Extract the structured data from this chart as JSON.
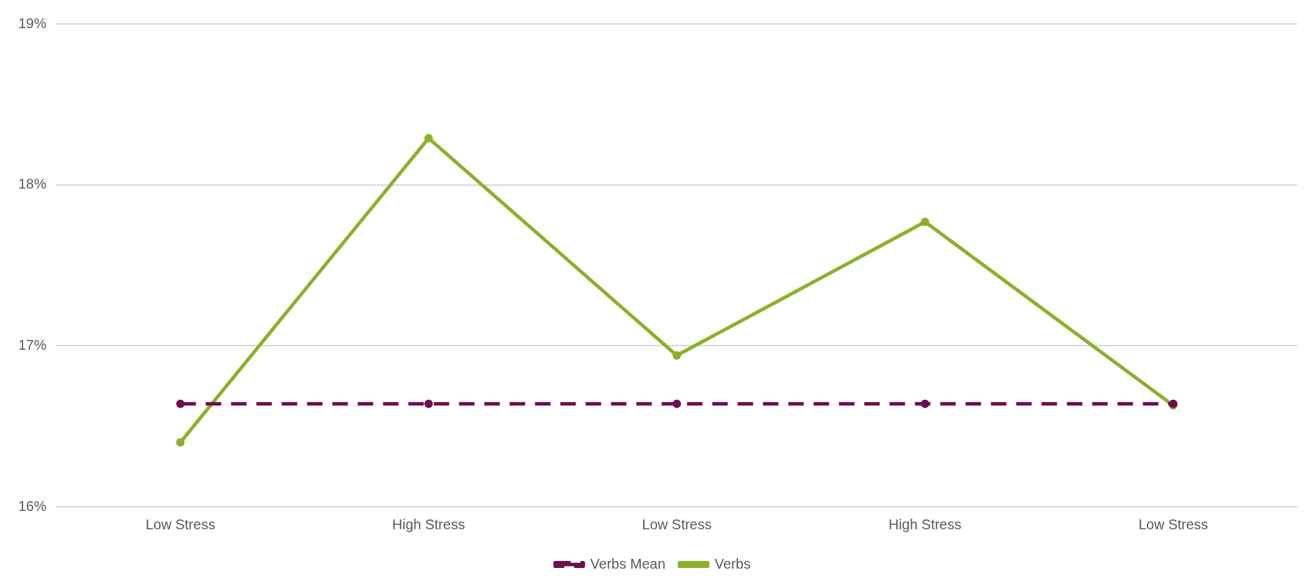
{
  "chart_data": {
    "type": "line",
    "categories": [
      "Low Stress",
      "High Stress",
      "Low Stress",
      "High Stress",
      "Low Stress"
    ],
    "series": [
      {
        "name": "Verbs",
        "color": "#8db02c",
        "values": [
          16.4,
          18.29,
          16.94,
          17.77,
          16.63
        ],
        "line_style": "solid"
      },
      {
        "name": "Verbs Mean",
        "color": "#6b0f50",
        "values": [
          16.64,
          16.64,
          16.64,
          16.64,
          16.64
        ],
        "line_style": "dashed"
      }
    ],
    "ylim": [
      16,
      19
    ],
    "yticks": [
      {
        "value": 16,
        "label": "16%"
      },
      {
        "value": 17,
        "label": "17%"
      },
      {
        "value": 18,
        "label": "18%"
      },
      {
        "value": 19,
        "label": "19%"
      }
    ],
    "grid": "y",
    "legend": "bottom",
    "marker": "circle"
  }
}
